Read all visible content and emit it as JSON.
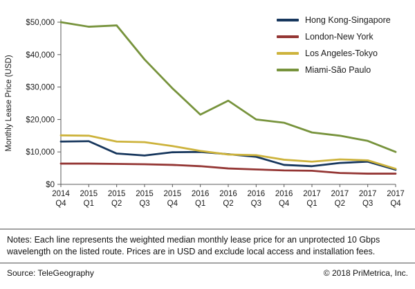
{
  "chart_data": {
    "type": "line",
    "title": "",
    "xlabel": "",
    "ylabel": "Monthly Lease Price (USD)",
    "ylim": [
      0,
      50000
    ],
    "ytick_step": 10000,
    "grid": false,
    "legend_position": "top-right",
    "categories": [
      "2014 Q4",
      "2015 Q1",
      "2015 Q2",
      "2015 Q3",
      "2015 Q4",
      "2016 Q1",
      "2016 Q2",
      "2016 Q3",
      "2016 Q4",
      "2017 Q1",
      "2017 Q2",
      "2017 Q3",
      "2017 Q4"
    ],
    "series": [
      {
        "name": "Hong Kong-Singapore",
        "color": "#17375d",
        "values": [
          13200,
          13300,
          9500,
          8900,
          9900,
          10000,
          9300,
          8500,
          6000,
          5600,
          6600,
          7000,
          4500
        ]
      },
      {
        "name": "London-New York",
        "color": "#943634",
        "values": [
          6400,
          6400,
          6300,
          6200,
          6000,
          5600,
          4900,
          4600,
          4300,
          4200,
          3500,
          3300,
          3300
        ]
      },
      {
        "name": "Los Angeles-Tokyo",
        "color": "#cdb33c",
        "values": [
          15100,
          15000,
          13200,
          13000,
          11800,
          10300,
          9200,
          9000,
          7600,
          7000,
          7700,
          7400,
          4800
        ]
      },
      {
        "name": "Miami-São Paulo",
        "color": "#77933c",
        "values": [
          50000,
          48600,
          49000,
          38500,
          29600,
          21500,
          25800,
          20000,
          19000,
          16000,
          15000,
          13400,
          10000
        ]
      }
    ]
  },
  "notes": {
    "text": "Notes: Each line represents the weighted median monthly lease price for an unprotected 10 Gbps wavelength on the listed route. Prices are in USD and exclude local access and installation fees."
  },
  "footer": {
    "source": "Source: TeleGeography",
    "copyright": "© 2018 PriMetrica, Inc."
  }
}
